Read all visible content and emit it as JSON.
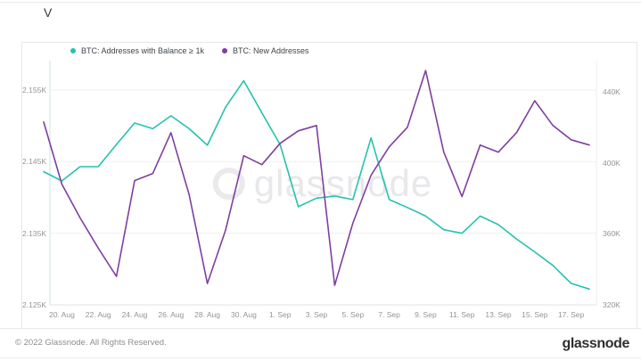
{
  "page": {
    "title": "V",
    "watermark": "glassnode",
    "footer": {
      "copyright": "© 2022 Glassnode. All Rights Reserved.",
      "brand": "glassnode"
    }
  },
  "legend": {
    "items": [
      {
        "label": "BTC: Addresses with Balance ≥ 1k",
        "color": "#25c2ae"
      },
      {
        "label": "BTC: New Addresses",
        "color": "#7e3fa0"
      }
    ]
  },
  "chart_data": {
    "type": "line",
    "title": "",
    "grid": "horizontal",
    "legend_position": "top-left",
    "categories": [
      "19. Aug",
      "20. Aug",
      "21. Aug",
      "22. Aug",
      "23. Aug",
      "24. Aug",
      "25. Aug",
      "26. Aug",
      "27. Aug",
      "28. Aug",
      "29. Aug",
      "30. Aug",
      "31. Aug",
      "1. Sep",
      "2. Sep",
      "3. Sep",
      "4. Sep",
      "5. Sep",
      "6. Sep",
      "7. Sep",
      "8. Sep",
      "9. Sep",
      "10. Sep",
      "11. Sep",
      "12. Sep",
      "13. Sep",
      "14. Sep",
      "15. Sep",
      "16. Sep",
      "17. Sep",
      "18. Sep"
    ],
    "x_tick_labels": [
      "20. Aug",
      "22. Aug",
      "24. Aug",
      "26. Aug",
      "28. Aug",
      "30. Aug",
      "1. Sep",
      "3. Sep",
      "5. Sep",
      "7. Sep",
      "9. Sep",
      "11. Sep",
      "13. Sep",
      "15. Sep",
      "17. Sep"
    ],
    "series": [
      {
        "name": "BTC: Addresses with Balance ≥ 1k",
        "axis": "left",
        "color": "#25c2ae",
        "values": [
          2143.6,
          2142.3,
          2144.3,
          2144.3,
          2147.4,
          2150.4,
          2149.6,
          2151.4,
          2149.6,
          2147.3,
          2152.6,
          2156.3,
          2151.8,
          2147.4,
          2138.7,
          2139.9,
          2140.2,
          2139.7,
          2148.3,
          2139.7,
          2138.6,
          2137.4,
          2135.5,
          2135.0,
          2137.4,
          2136.2,
          2134.2,
          2132.4,
          2130.5,
          2128.0,
          2127.2
        ]
      },
      {
        "name": "BTC: New Addresses",
        "axis": "right",
        "color": "#7e3fa0",
        "values": [
          423,
          388,
          369,
          352,
          336,
          390,
          394,
          417,
          382,
          332,
          362,
          404,
          399,
          411,
          418,
          421,
          331,
          366,
          393,
          409,
          420,
          452,
          406,
          381,
          410,
          406,
          417,
          435,
          421,
          413,
          410
        ]
      }
    ],
    "left_axis": {
      "tick_labels": [
        "2.155K",
        "2.145K",
        "2.135K",
        "2.125K"
      ],
      "tick_values": [
        2155,
        2145,
        2135,
        2125
      ],
      "range": [
        2125,
        2159
      ],
      "unit": "K addresses"
    },
    "right_axis": {
      "tick_labels": [
        "440K",
        "400K",
        "360K",
        "320K"
      ],
      "tick_values": [
        440,
        400,
        360,
        320
      ],
      "range": [
        320,
        460
      ],
      "unit": "K addresses"
    }
  }
}
